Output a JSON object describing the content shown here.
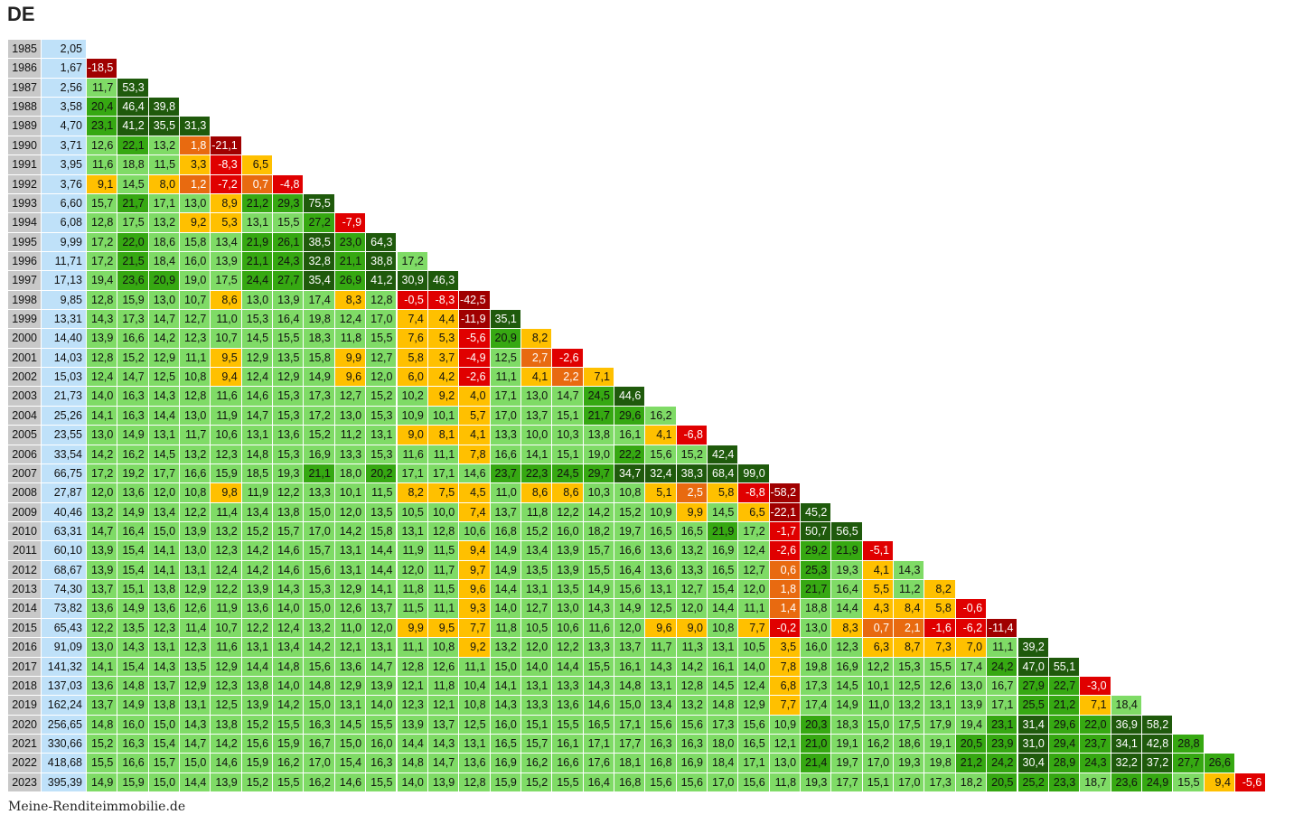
{
  "title": "DE",
  "source": "Meine-Renditeimmobilie.de",
  "colors": {
    "year_bg": "#c8c8c8",
    "price_bg": "#bfe1f9",
    "dark_green": "#1f5a0c",
    "mid_green": "#36a812",
    "light_green": "#7fdb66",
    "yellow": "#ffc000",
    "orange": "#e86a10",
    "red": "#e00000",
    "dark_red": "#a00000"
  },
  "chart_data": {
    "type": "table",
    "title": "DE",
    "years": [
      1985,
      1986,
      1987,
      1988,
      1989,
      1990,
      1991,
      1992,
      1993,
      1994,
      1995,
      1996,
      1997,
      1998,
      1999,
      2000,
      2001,
      2002,
      2003,
      2004,
      2005,
      2006,
      2007,
      2008,
      2009,
      2010,
      2011,
      2012,
      2013,
      2014,
      2015,
      2016,
      2017,
      2018,
      2019,
      2020,
      2021,
      2022,
      2023
    ],
    "prices": [
      "2,05",
      "1,67",
      "2,56",
      "3,58",
      "4,70",
      "3,71",
      "3,95",
      "3,76",
      "6,60",
      "6,08",
      "9,99",
      "11,71",
      "17,13",
      "9,85",
      "13,31",
      "14,40",
      "14,03",
      "15,03",
      "21,73",
      "25,26",
      "23,55",
      "33,54",
      "66,75",
      "27,87",
      "40,46",
      "63,31",
      "60,10",
      "68,67",
      "74,30",
      "73,82",
      "65,43",
      "91,09",
      "141,32",
      "137,03",
      "162,24",
      "256,65",
      "330,66",
      "418,68",
      "395,39"
    ],
    "rows": [
      [],
      [
        "-18,5"
      ],
      [
        "11,7",
        "53,3"
      ],
      [
        "20,4",
        "46,4",
        "39,8"
      ],
      [
        "23,1",
        "41,2",
        "35,5",
        "31,3"
      ],
      [
        "12,6",
        "22,1",
        "13,2",
        "1,8",
        "-21,1"
      ],
      [
        "11,6",
        "18,8",
        "11,5",
        "3,3",
        "-8,3",
        "6,5"
      ],
      [
        "9,1",
        "14,5",
        "8,0",
        "1,2",
        "-7,2",
        "0,7",
        "-4,8"
      ],
      [
        "15,7",
        "21,7",
        "17,1",
        "13,0",
        "8,9",
        "21,2",
        "29,3",
        "75,5"
      ],
      [
        "12,8",
        "17,5",
        "13,2",
        "9,2",
        "5,3",
        "13,1",
        "15,5",
        "27,2",
        "-7,9"
      ],
      [
        "17,2",
        "22,0",
        "18,6",
        "15,8",
        "13,4",
        "21,9",
        "26,1",
        "38,5",
        "23,0",
        "64,3"
      ],
      [
        "17,2",
        "21,5",
        "18,4",
        "16,0",
        "13,9",
        "21,1",
        "24,3",
        "32,8",
        "21,1",
        "38,8",
        "17,2"
      ],
      [
        "19,4",
        "23,6",
        "20,9",
        "19,0",
        "17,5",
        "24,4",
        "27,7",
        "35,4",
        "26,9",
        "41,2",
        "30,9",
        "46,3"
      ],
      [
        "12,8",
        "15,9",
        "13,0",
        "10,7",
        "8,6",
        "13,0",
        "13,9",
        "17,4",
        "8,3",
        "12,8",
        "-0,5",
        "-8,3",
        "-42,5"
      ],
      [
        "14,3",
        "17,3",
        "14,7",
        "12,7",
        "11,0",
        "15,3",
        "16,4",
        "19,8",
        "12,4",
        "17,0",
        "7,4",
        "4,4",
        "-11,9",
        "35,1"
      ],
      [
        "13,9",
        "16,6",
        "14,2",
        "12,3",
        "10,7",
        "14,5",
        "15,5",
        "18,3",
        "11,8",
        "15,5",
        "7,6",
        "5,3",
        "-5,6",
        "20,9",
        "8,2"
      ],
      [
        "12,8",
        "15,2",
        "12,9",
        "11,1",
        "9,5",
        "12,9",
        "13,5",
        "15,8",
        "9,9",
        "12,7",
        "5,8",
        "3,7",
        "-4,9",
        "12,5",
        "2,7",
        "-2,6"
      ],
      [
        "12,4",
        "14,7",
        "12,5",
        "10,8",
        "9,4",
        "12,4",
        "12,9",
        "14,9",
        "9,6",
        "12,0",
        "6,0",
        "4,2",
        "-2,6",
        "11,1",
        "4,1",
        "2,2",
        "7,1"
      ],
      [
        "14,0",
        "16,3",
        "14,3",
        "12,8",
        "11,6",
        "14,6",
        "15,3",
        "17,3",
        "12,7",
        "15,2",
        "10,2",
        "9,2",
        "4,0",
        "17,1",
        "13,0",
        "14,7",
        "24,5",
        "44,6"
      ],
      [
        "14,1",
        "16,3",
        "14,4",
        "13,0",
        "11,9",
        "14,7",
        "15,3",
        "17,2",
        "13,0",
        "15,3",
        "10,9",
        "10,1",
        "5,7",
        "17,0",
        "13,7",
        "15,1",
        "21,7",
        "29,6",
        "16,2"
      ],
      [
        "13,0",
        "14,9",
        "13,1",
        "11,7",
        "10,6",
        "13,1",
        "13,6",
        "15,2",
        "11,2",
        "13,1",
        "9,0",
        "8,1",
        "4,1",
        "13,3",
        "10,0",
        "10,3",
        "13,8",
        "16,1",
        "4,1",
        "-6,8"
      ],
      [
        "14,2",
        "16,2",
        "14,5",
        "13,2",
        "12,3",
        "14,8",
        "15,3",
        "16,9",
        "13,3",
        "15,3",
        "11,6",
        "11,1",
        "7,8",
        "16,6",
        "14,1",
        "15,1",
        "19,0",
        "22,2",
        "15,6",
        "15,2",
        "42,4"
      ],
      [
        "17,2",
        "19,2",
        "17,7",
        "16,6",
        "15,9",
        "18,5",
        "19,3",
        "21,1",
        "18,0",
        "20,2",
        "17,1",
        "17,1",
        "14,6",
        "23,7",
        "22,3",
        "24,5",
        "29,7",
        "34,7",
        "32,4",
        "38,3",
        "68,4",
        "99,0"
      ],
      [
        "12,0",
        "13,6",
        "12,0",
        "10,8",
        "9,8",
        "11,9",
        "12,2",
        "13,3",
        "10,1",
        "11,5",
        "8,2",
        "7,5",
        "4,5",
        "11,0",
        "8,6",
        "8,6",
        "10,3",
        "10,8",
        "5,1",
        "2,5",
        "5,8",
        "-8,8",
        "-58,2"
      ],
      [
        "13,2",
        "14,9",
        "13,4",
        "12,2",
        "11,4",
        "13,4",
        "13,8",
        "15,0",
        "12,0",
        "13,5",
        "10,5",
        "10,0",
        "7,4",
        "13,7",
        "11,8",
        "12,2",
        "14,2",
        "15,2",
        "10,9",
        "9,9",
        "14,5",
        "6,5",
        "-22,1",
        "45,2"
      ],
      [
        "14,7",
        "16,4",
        "15,0",
        "13,9",
        "13,2",
        "15,2",
        "15,7",
        "17,0",
        "14,2",
        "15,8",
        "13,1",
        "12,8",
        "10,6",
        "16,8",
        "15,2",
        "16,0",
        "18,2",
        "19,7",
        "16,5",
        "16,5",
        "21,9",
        "17,2",
        "-1,7",
        "50,7",
        "56,5"
      ],
      [
        "13,9",
        "15,4",
        "14,1",
        "13,0",
        "12,3",
        "14,2",
        "14,6",
        "15,7",
        "13,1",
        "14,4",
        "11,9",
        "11,5",
        "9,4",
        "14,9",
        "13,4",
        "13,9",
        "15,7",
        "16,6",
        "13,6",
        "13,2",
        "16,9",
        "12,4",
        "-2,6",
        "29,2",
        "21,9",
        "-5,1"
      ],
      [
        "13,9",
        "15,4",
        "14,1",
        "13,1",
        "12,4",
        "14,2",
        "14,6",
        "15,6",
        "13,1",
        "14,4",
        "12,0",
        "11,7",
        "9,7",
        "14,9",
        "13,5",
        "13,9",
        "15,5",
        "16,4",
        "13,6",
        "13,3",
        "16,5",
        "12,7",
        "0,6",
        "25,3",
        "19,3",
        "4,1",
        "14,3"
      ],
      [
        "13,7",
        "15,1",
        "13,8",
        "12,9",
        "12,2",
        "13,9",
        "14,3",
        "15,3",
        "12,9",
        "14,1",
        "11,8",
        "11,5",
        "9,6",
        "14,4",
        "13,1",
        "13,5",
        "14,9",
        "15,6",
        "13,1",
        "12,7",
        "15,4",
        "12,0",
        "1,8",
        "21,7",
        "16,4",
        "5,5",
        "11,2",
        "8,2"
      ],
      [
        "13,6",
        "14,9",
        "13,6",
        "12,6",
        "11,9",
        "13,6",
        "14,0",
        "15,0",
        "12,6",
        "13,7",
        "11,5",
        "11,1",
        "9,3",
        "14,0",
        "12,7",
        "13,0",
        "14,3",
        "14,9",
        "12,5",
        "12,0",
        "14,4",
        "11,1",
        "1,4",
        "18,8",
        "14,4",
        "4,3",
        "8,4",
        "5,8",
        "-0,6"
      ],
      [
        "12,2",
        "13,5",
        "12,3",
        "11,4",
        "10,7",
        "12,2",
        "12,4",
        "13,2",
        "11,0",
        "12,0",
        "9,9",
        "9,5",
        "7,7",
        "11,8",
        "10,5",
        "10,6",
        "11,6",
        "12,0",
        "9,6",
        "9,0",
        "10,8",
        "7,7",
        "-0,2",
        "13,0",
        "8,3",
        "0,7",
        "2,1",
        "-1,6",
        "-6,2",
        "-11,4"
      ],
      [
        "13,0",
        "14,3",
        "13,1",
        "12,3",
        "11,6",
        "13,1",
        "13,4",
        "14,2",
        "12,1",
        "13,1",
        "11,1",
        "10,8",
        "9,2",
        "13,2",
        "12,0",
        "12,2",
        "13,3",
        "13,7",
        "11,7",
        "11,3",
        "13,1",
        "10,5",
        "3,5",
        "16,0",
        "12,3",
        "6,3",
        "8,7",
        "7,3",
        "7,0",
        "11,1",
        "39,2"
      ],
      [
        "14,1",
        "15,4",
        "14,3",
        "13,5",
        "12,9",
        "14,4",
        "14,8",
        "15,6",
        "13,6",
        "14,7",
        "12,8",
        "12,6",
        "11,1",
        "15,0",
        "14,0",
        "14,4",
        "15,5",
        "16,1",
        "14,3",
        "14,2",
        "16,1",
        "14,0",
        "7,8",
        "19,8",
        "16,9",
        "12,2",
        "15,3",
        "15,5",
        "17,4",
        "24,2",
        "47,0",
        "55,1"
      ],
      [
        "13,6",
        "14,8",
        "13,7",
        "12,9",
        "12,3",
        "13,8",
        "14,0",
        "14,8",
        "12,9",
        "13,9",
        "12,1",
        "11,8",
        "10,4",
        "14,1",
        "13,1",
        "13,3",
        "14,3",
        "14,8",
        "13,1",
        "12,8",
        "14,5",
        "12,4",
        "6,8",
        "17,3",
        "14,5",
        "10,1",
        "12,5",
        "12,6",
        "13,0",
        "16,7",
        "27,9",
        "22,7",
        "-3,0"
      ],
      [
        "13,7",
        "14,9",
        "13,8",
        "13,1",
        "12,5",
        "13,9",
        "14,2",
        "15,0",
        "13,1",
        "14,0",
        "12,3",
        "12,1",
        "10,8",
        "14,3",
        "13,3",
        "13,6",
        "14,6",
        "15,0",
        "13,4",
        "13,2",
        "14,8",
        "12,9",
        "7,7",
        "17,4",
        "14,9",
        "11,0",
        "13,2",
        "13,1",
        "13,9",
        "17,1",
        "25,5",
        "21,2",
        "7,1",
        "18,4"
      ],
      [
        "14,8",
        "16,0",
        "15,0",
        "14,3",
        "13,8",
        "15,2",
        "15,5",
        "16,3",
        "14,5",
        "15,5",
        "13,9",
        "13,7",
        "12,5",
        "16,0",
        "15,1",
        "15,5",
        "16,5",
        "17,1",
        "15,6",
        "15,6",
        "17,3",
        "15,6",
        "10,9",
        "20,3",
        "18,3",
        "15,0",
        "17,5",
        "17,9",
        "19,4",
        "23,1",
        "31,4",
        "29,6",
        "22,0",
        "36,9",
        "58,2"
      ],
      [
        "15,2",
        "16,3",
        "15,4",
        "14,7",
        "14,2",
        "15,6",
        "15,9",
        "16,7",
        "15,0",
        "16,0",
        "14,4",
        "14,3",
        "13,1",
        "16,5",
        "15,7",
        "16,1",
        "17,1",
        "17,7",
        "16,3",
        "16,3",
        "18,0",
        "16,5",
        "12,1",
        "21,0",
        "19,1",
        "16,2",
        "18,6",
        "19,1",
        "20,5",
        "23,9",
        "31,0",
        "29,4",
        "23,7",
        "34,1",
        "42,8",
        "28,8"
      ],
      [
        "15,5",
        "16,6",
        "15,7",
        "15,0",
        "14,6",
        "15,9",
        "16,2",
        "17,0",
        "15,4",
        "16,3",
        "14,8",
        "14,7",
        "13,6",
        "16,9",
        "16,2",
        "16,6",
        "17,6",
        "18,1",
        "16,8",
        "16,9",
        "18,4",
        "17,1",
        "13,0",
        "21,4",
        "19,7",
        "17,0",
        "19,3",
        "19,8",
        "21,2",
        "24,2",
        "30,4",
        "28,9",
        "24,3",
        "32,2",
        "37,2",
        "27,7",
        "26,6"
      ],
      [
        "14,9",
        "15,9",
        "15,0",
        "14,4",
        "13,9",
        "15,2",
        "15,5",
        "16,2",
        "14,6",
        "15,5",
        "14,0",
        "13,9",
        "12,8",
        "15,9",
        "15,2",
        "15,5",
        "16,4",
        "16,8",
        "15,6",
        "15,6",
        "17,0",
        "15,6",
        "11,8",
        "19,3",
        "17,7",
        "15,1",
        "17,0",
        "17,3",
        "18,2",
        "20,5",
        "25,2",
        "23,3",
        "18,7",
        "23,6",
        "24,9",
        "15,5",
        "9,4",
        "-5,6"
      ]
    ]
  }
}
